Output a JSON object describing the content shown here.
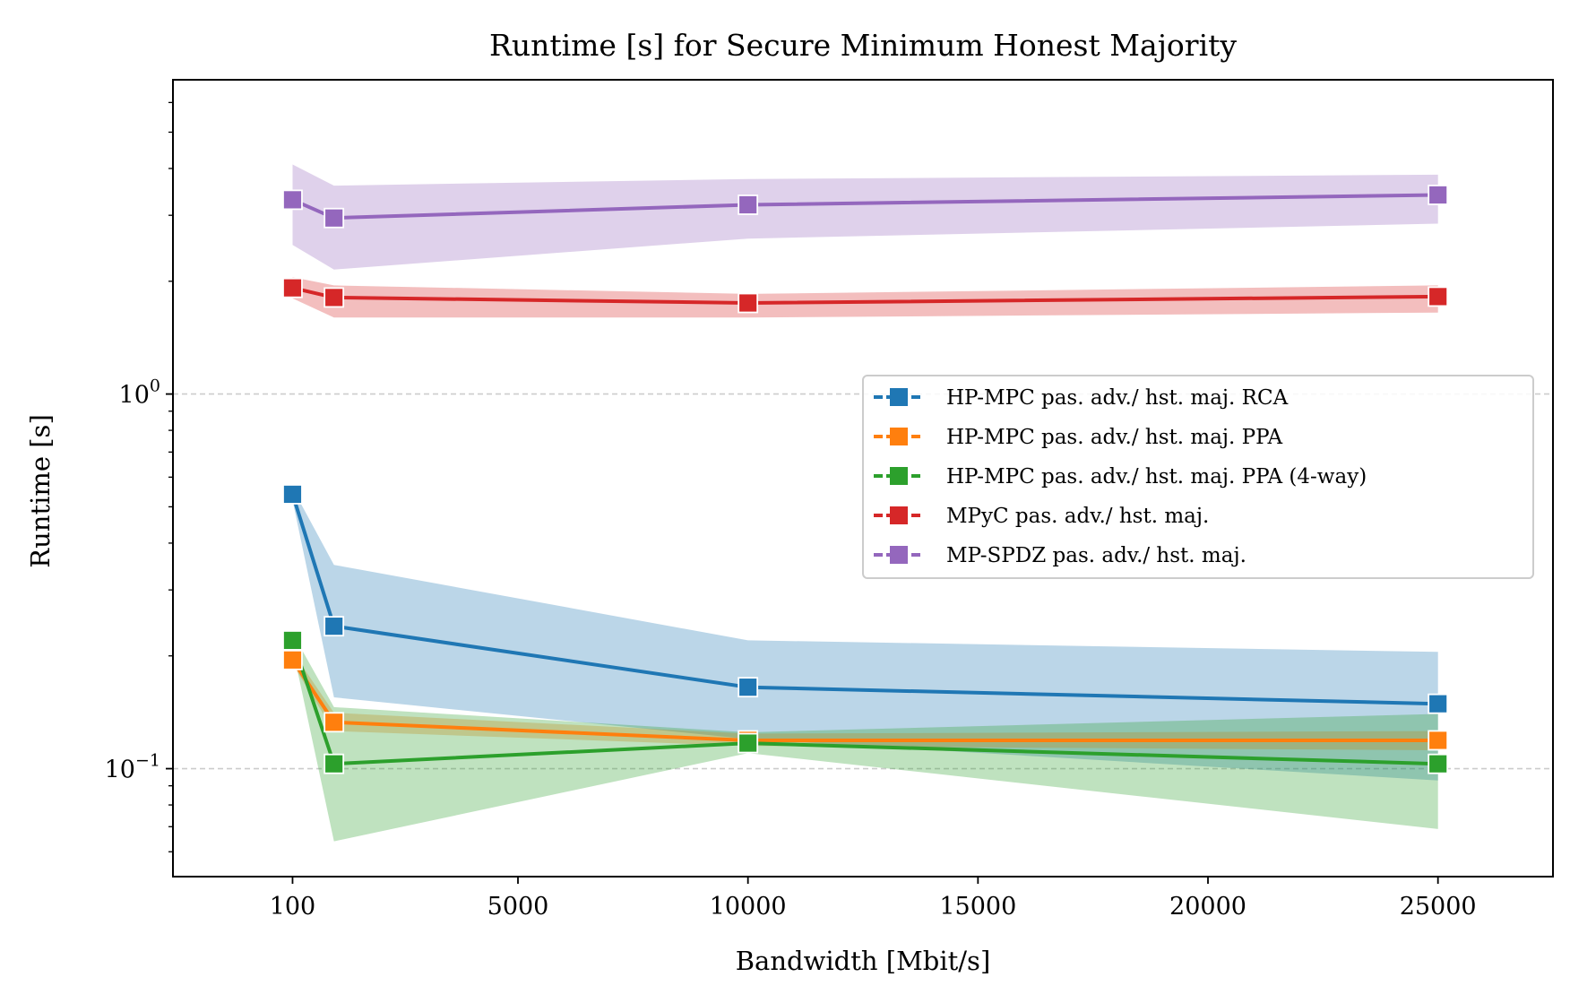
{
  "chart_data": {
    "type": "line",
    "title": "Runtime [s] for Secure Minimum Honest Majority",
    "xlabel": "Bandwidth [Mbit/s]",
    "ylabel": "Runtime [s]",
    "x_scale": "linear",
    "y_scale": "log",
    "xlim": [
      -2500,
      27500
    ],
    "ylim": [
      0.0515,
      6.9
    ],
    "x_ticks": [
      100,
      5000,
      10000,
      15000,
      20000,
      25000
    ],
    "x_tick_labels": [
      "100",
      "5000",
      "10000",
      "15000",
      "20000",
      "25000"
    ],
    "y_ticks": [
      {
        "value": 0.1,
        "base": "10",
        "exp": "−1"
      },
      {
        "value": 1,
        "base": "10",
        "exp": "0"
      }
    ],
    "grid": "y-major-dashed",
    "legend_position": "center-right",
    "x": [
      100,
      1000,
      10000,
      25000
    ],
    "series": [
      {
        "name": "HP-MPC pas. adv./ hst. maj. RCA",
        "color": "#1f77b4",
        "values": [
          0.54,
          0.24,
          0.165,
          0.149
        ],
        "lower": [
          0.52,
          0.155,
          0.12,
          0.093
        ],
        "upper": [
          0.56,
          0.35,
          0.22,
          0.205
        ]
      },
      {
        "name": "HP-MPC pas. adv./ hst. maj. PPA",
        "color": "#ff7f0e",
        "values": [
          0.195,
          0.133,
          0.119,
          0.119
        ],
        "lower": [
          0.19,
          0.126,
          0.115,
          0.112
        ],
        "upper": [
          0.205,
          0.141,
          0.124,
          0.126
        ]
      },
      {
        "name": "HP-MPC pas. adv./ hst. maj. PPA (4-way)",
        "color": "#2ca02c",
        "values": [
          0.22,
          0.103,
          0.117,
          0.103
        ],
        "lower": [
          0.21,
          0.064,
          0.11,
          0.069
        ],
        "upper": [
          0.23,
          0.146,
          0.125,
          0.14
        ]
      },
      {
        "name": "MPyC pas. adv./ hst. maj.",
        "color": "#d62728",
        "values": [
          1.92,
          1.81,
          1.75,
          1.82
        ],
        "lower": [
          1.8,
          1.6,
          1.6,
          1.65
        ],
        "upper": [
          2.05,
          1.95,
          1.85,
          1.95
        ]
      },
      {
        "name": "MP-SPDZ pas. adv./ hst. maj.",
        "color": "#9467bd",
        "values": [
          3.3,
          2.95,
          3.2,
          3.4
        ],
        "lower": [
          2.5,
          2.15,
          2.6,
          2.85
        ],
        "upper": [
          4.1,
          3.6,
          3.75,
          3.85
        ]
      }
    ]
  }
}
